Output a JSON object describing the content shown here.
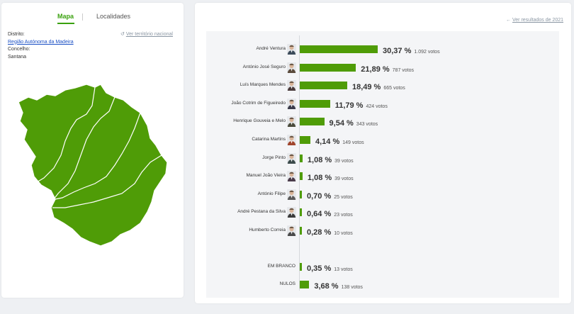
{
  "tabs": {
    "map": "Mapa",
    "localities": "Localidades"
  },
  "location": {
    "district_label": "Distrito:",
    "district_value": "Região Autónoma da Madeira",
    "council_label": "Concelho:",
    "council_value": "Santana",
    "national_link": "Ver território nacional"
  },
  "results_header": {
    "previous_link": "Ver resultados de 2021"
  },
  "colors": {
    "accent": "#3aa10e",
    "bar": "#4f9c07",
    "map_fill": "#4f9c07"
  },
  "max_pct": 30.37,
  "candidates": [
    {
      "name": "André Ventura",
      "pct": 30.37,
      "pct_label": "30,37 %",
      "votes": "1.092 votos"
    },
    {
      "name": "António José Seguro",
      "pct": 21.89,
      "pct_label": "21,89 %",
      "votes": "787 votos"
    },
    {
      "name": "Luís Marques Mendes",
      "pct": 18.49,
      "pct_label": "18,49 %",
      "votes": "665 votos"
    },
    {
      "name": "João Cotrim de Figueiredo",
      "pct": 11.79,
      "pct_label": "11,79 %",
      "votes": "424 votos"
    },
    {
      "name": "Henrique Gouveia e Melo",
      "pct": 9.54,
      "pct_label": "9,54 %",
      "votes": "343 votos"
    },
    {
      "name": "Catarina Martins",
      "pct": 4.14,
      "pct_label": "4,14 %",
      "votes": "149 votos"
    },
    {
      "name": "Jorge Pinto",
      "pct": 1.08,
      "pct_label": "1,08 %",
      "votes": "39 votos"
    },
    {
      "name": "Manuel João Vieira",
      "pct": 1.08,
      "pct_label": "1,08 %",
      "votes": "39 votos"
    },
    {
      "name": "António Filipe",
      "pct": 0.7,
      "pct_label": "0,70 %",
      "votes": "25 votos"
    },
    {
      "name": "André Pestana da Silva",
      "pct": 0.64,
      "pct_label": "0,64 %",
      "votes": "23 votos"
    },
    {
      "name": "Humberto Correia",
      "pct": 0.28,
      "pct_label": "0,28 %",
      "votes": "10 votos"
    }
  ],
  "others": [
    {
      "name": "EM BRANCO",
      "pct": 0.35,
      "pct_label": "0,35 %",
      "votes": "13 votos"
    },
    {
      "name": "NULOS",
      "pct": 3.68,
      "pct_label": "3,68 %",
      "votes": "138 votos"
    }
  ]
}
